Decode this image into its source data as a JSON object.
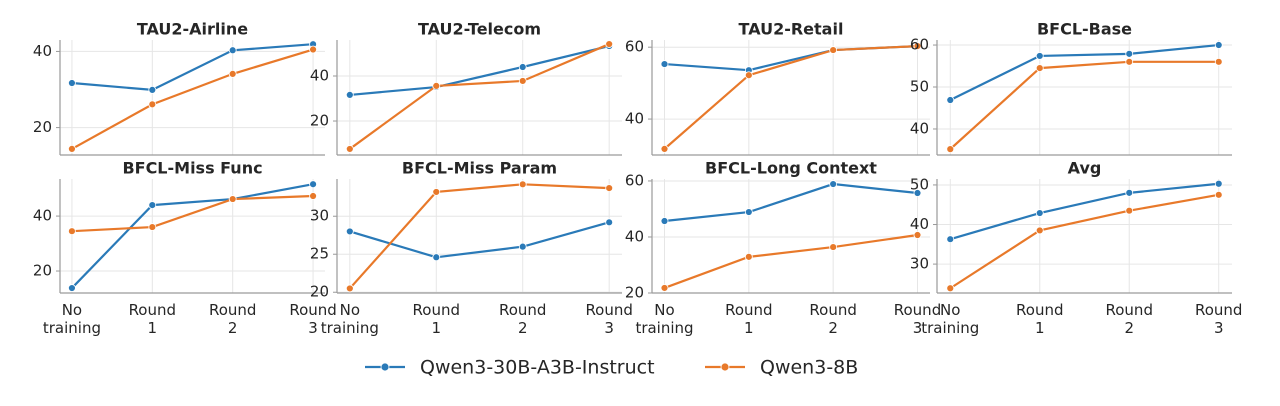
{
  "chart_data": [
    {
      "type": "line",
      "title": "TAU2-Airline",
      "categories": [
        null,
        null,
        null,
        null
      ],
      "series": [
        {
          "name": "Qwen3-30B-A3B-Instruct",
          "color": "#2a7ab8",
          "values": [
            31.7,
            29.9,
            40.3,
            41.9
          ]
        },
        {
          "name": "Qwen3-8B",
          "color": "#e8792a",
          "values": [
            14.4,
            26.1,
            34.1,
            40.5
          ]
        }
      ],
      "ylim": [
        12.8,
        43
      ],
      "yticks": [
        20,
        40
      ],
      "grid": true
    },
    {
      "type": "line",
      "title": "TAU2-Telecom",
      "categories": [
        null,
        null,
        null,
        null
      ],
      "series": [
        {
          "name": "Qwen3-30B-A3B-Instruct",
          "color": "#2a7ab8",
          "values": [
            31.6,
            35.1,
            44,
            53.3
          ]
        },
        {
          "name": "Qwen3-8B",
          "color": "#e8792a",
          "values": [
            7.6,
            35.6,
            37.8,
            54.2
          ]
        }
      ],
      "ylim": [
        4.9,
        56
      ],
      "yticks": [
        20,
        40
      ],
      "grid": true
    },
    {
      "type": "line",
      "title": "TAU2-Retail",
      "categories": [
        null,
        null,
        null,
        null
      ],
      "series": [
        {
          "name": "Qwen3-30B-A3B-Instruct",
          "color": "#2a7ab8",
          "values": [
            55.3,
            53.6,
            59.2,
            60.3
          ]
        },
        {
          "name": "Qwen3-8B",
          "color": "#e8792a",
          "values": [
            31.7,
            52.2,
            59.2,
            60.3
          ]
        }
      ],
      "ylim": [
        30,
        62
      ],
      "yticks": [
        40,
        60
      ],
      "grid": true
    },
    {
      "type": "line",
      "title": "BFCL-Base",
      "categories": [
        null,
        null,
        null,
        null
      ],
      "series": [
        {
          "name": "Qwen3-30B-A3B-Instruct",
          "color": "#2a7ab8",
          "values": [
            46.9,
            57.4,
            57.9,
            60
          ]
        },
        {
          "name": "Qwen3-8B",
          "color": "#e8792a",
          "values": [
            35.2,
            54.5,
            56,
            56
          ]
        }
      ],
      "ylim": [
        33.8,
        61.2
      ],
      "yticks": [
        40,
        50,
        60
      ],
      "grid": true
    },
    {
      "type": "line",
      "title": "BFCL-Miss Func",
      "categories": [
        "No training",
        "Round 1",
        "Round 2",
        "Round 3"
      ],
      "series": [
        {
          "name": "Qwen3-30B-A3B-Instruct",
          "color": "#2a7ab8",
          "values": [
            13.8,
            44,
            46.2,
            51.6
          ]
        },
        {
          "name": "Qwen3-8B",
          "color": "#e8792a",
          "values": [
            34.5,
            36,
            46.2,
            47.3
          ]
        }
      ],
      "ylim": [
        12,
        53.5
      ],
      "yticks": [
        20,
        40
      ],
      "grid": true
    },
    {
      "type": "line",
      "title": "BFCL-Miss Param",
      "categories": [
        "No training",
        "Round 1",
        "Round 2",
        "Round 3"
      ],
      "series": [
        {
          "name": "Qwen3-30B-A3B-Instruct",
          "color": "#2a7ab8",
          "values": [
            28,
            24.6,
            26,
            29.2
          ]
        },
        {
          "name": "Qwen3-8B",
          "color": "#e8792a",
          "values": [
            20.5,
            33.2,
            34.2,
            33.7
          ]
        }
      ],
      "ylim": [
        19.9,
        34.9
      ],
      "yticks": [
        20,
        25,
        30
      ],
      "grid": true
    },
    {
      "type": "line",
      "title": "BFCL-Long Context",
      "categories": [
        "No training",
        "Round 1",
        "Round 2",
        "Round 3"
      ],
      "series": [
        {
          "name": "Qwen3-30B-A3B-Instruct",
          "color": "#2a7ab8",
          "values": [
            45.7,
            48.9,
            58.9,
            55.7
          ]
        },
        {
          "name": "Qwen3-8B",
          "color": "#e8792a",
          "values": [
            21.8,
            32.9,
            36.4,
            40.7
          ]
        }
      ],
      "ylim": [
        20,
        60.7
      ],
      "yticks": [
        20,
        40,
        60
      ],
      "grid": true
    },
    {
      "type": "line",
      "title": "Avg",
      "categories": [
        "No training",
        "Round 1",
        "Round 2",
        "Round 3"
      ],
      "series": [
        {
          "name": "Qwen3-30B-A3B-Instruct",
          "color": "#2a7ab8",
          "values": [
            36.3,
            42.9,
            48,
            50.3
          ]
        },
        {
          "name": "Qwen3-8B",
          "color": "#e8792a",
          "values": [
            23.9,
            38.5,
            43.5,
            47.5
          ]
        }
      ],
      "ylim": [
        22.7,
        51.5
      ],
      "yticks": [
        30,
        40,
        50
      ],
      "grid": true
    }
  ]
}
